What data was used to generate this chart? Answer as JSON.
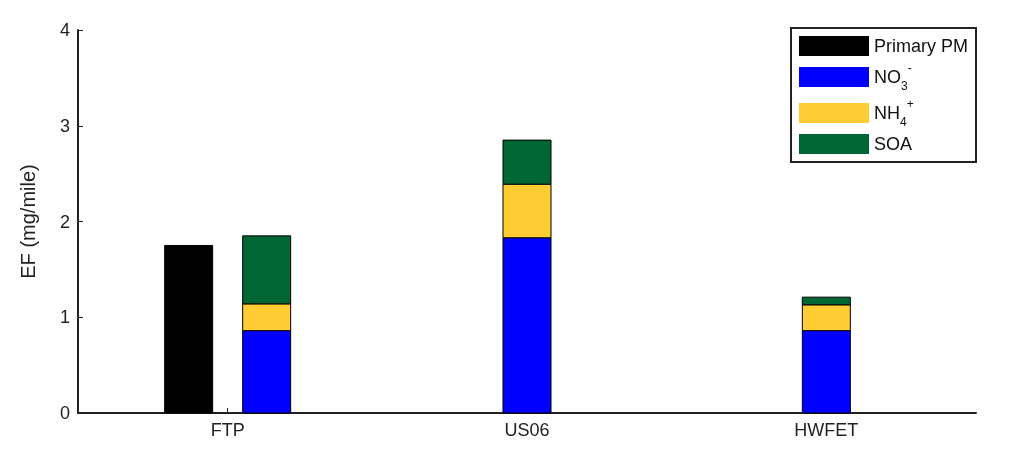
{
  "chart_data": {
    "type": "bar",
    "ylabel": "EF (mg/mile)",
    "categories": [
      "FTP",
      "US06",
      "HWFET"
    ],
    "series": [
      {
        "name": "Primary PM",
        "color": "#000000",
        "values": [
          1.75,
          null,
          null
        ]
      },
      {
        "name": "NO$_{3}$$^{-}$",
        "color": "#0000ff",
        "values": [
          0.86,
          1.83,
          0.86
        ],
        "base": [
          0,
          0,
          0
        ]
      },
      {
        "name": "NH$_{4}$$^{+}$",
        "color": "#ffcc33",
        "values": [
          0.28,
          0.56,
          0.27
        ],
        "base": [
          0.86,
          1.83,
          0.86
        ]
      },
      {
        "name": "SOA",
        "color": "#006633",
        "values": [
          0.71,
          0.46,
          0.08
        ],
        "base": [
          1.14,
          2.39,
          1.13
        ]
      }
    ],
    "ylim": [
      0,
      4
    ],
    "yticks": [
      0,
      1,
      2,
      3,
      4
    ],
    "grid": false,
    "legend": "top right"
  }
}
